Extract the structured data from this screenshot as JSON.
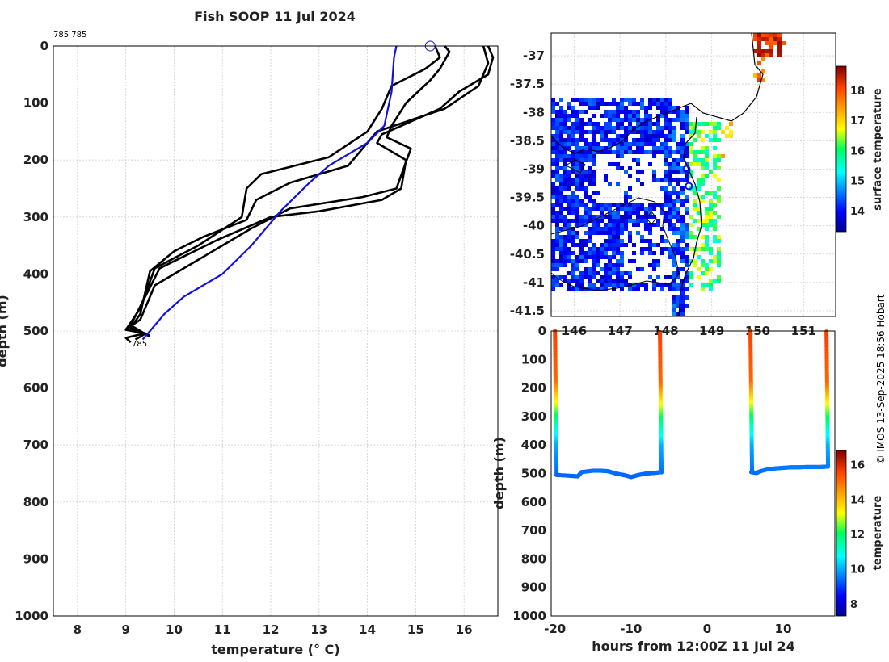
{
  "title": "Fish SOOP 11 Jul 2024",
  "copyright": "© IMOS 13-Sep-2025 18:56 Hobart",
  "colors": {
    "profile_line": "#000000",
    "climatology_line": "#1010e0",
    "coast": "#000000",
    "axis": "#000000"
  },
  "chart_data": [
    {
      "id": "profiles",
      "type": "line",
      "title": "Fish SOOP 11 Jul 2024",
      "xlabel": "temperature (° C)",
      "ylabel": "depth (m)",
      "xlim": [
        7.5,
        16.7
      ],
      "ylim": [
        1000,
        0
      ],
      "xticks": [
        "8",
        "9",
        "10",
        "11",
        "12",
        "13",
        "14",
        "15",
        "16"
      ],
      "yticks": [
        "0",
        "100",
        "200",
        "300",
        "400",
        "500",
        "600",
        "700",
        "800",
        "900",
        "1000"
      ],
      "grid": true,
      "top_label": "785 785",
      "bottom_label": "785",
      "series": [
        {
          "name": "profile-1",
          "color": "#000000",
          "points": [
            [
              15.6,
              0
            ],
            [
              15.7,
              10
            ],
            [
              15.5,
              40
            ],
            [
              15.3,
              60
            ],
            [
              14.8,
              100
            ],
            [
              14.5,
              140
            ],
            [
              14.4,
              160
            ],
            [
              14.9,
              180
            ],
            [
              14.6,
              250
            ],
            [
              13.9,
              265
            ],
            [
              12.4,
              285
            ],
            [
              11.6,
              320
            ],
            [
              10.4,
              380
            ],
            [
              9.6,
              420
            ],
            [
              9.3,
              480
            ],
            [
              9.0,
              497
            ],
            [
              9.4,
              505
            ],
            [
              9.2,
              515
            ]
          ]
        },
        {
          "name": "profile-2",
          "color": "#000000",
          "points": [
            [
              16.5,
              0
            ],
            [
              16.6,
              20
            ],
            [
              16.5,
              50
            ],
            [
              15.9,
              80
            ],
            [
              15.5,
              110
            ],
            [
              14.3,
              155
            ],
            [
              14.2,
              170
            ],
            [
              14.8,
              200
            ],
            [
              14.7,
              250
            ],
            [
              14.3,
              270
            ],
            [
              13.0,
              290
            ],
            [
              12.0,
              300
            ],
            [
              10.9,
              340
            ],
            [
              9.7,
              390
            ],
            [
              9.4,
              440
            ],
            [
              9.1,
              490
            ],
            [
              9.3,
              500
            ],
            [
              9.5,
              510
            ]
          ]
        },
        {
          "name": "profile-3",
          "color": "#000000",
          "points": [
            [
              16.4,
              0
            ],
            [
              16.5,
              30
            ],
            [
              16.3,
              70
            ],
            [
              15.6,
              110
            ],
            [
              14.2,
              150
            ],
            [
              13.6,
              210
            ],
            [
              12.4,
              240
            ],
            [
              11.7,
              270
            ],
            [
              11.5,
              305
            ],
            [
              10.6,
              335
            ],
            [
              10.0,
              360
            ],
            [
              9.5,
              395
            ],
            [
              9.3,
              470
            ],
            [
              9.1,
              495
            ],
            [
              9.5,
              508
            ]
          ]
        },
        {
          "name": "profile-4",
          "color": "#000000",
          "points": [
            [
              15.4,
              0
            ],
            [
              15.5,
              20
            ],
            [
              15.2,
              40
            ],
            [
              14.5,
              70
            ],
            [
              14.3,
              110
            ],
            [
              14.0,
              150
            ],
            [
              13.2,
              195
            ],
            [
              11.8,
              225
            ],
            [
              11.5,
              250
            ],
            [
              11.4,
              300
            ],
            [
              10.5,
              350
            ],
            [
              9.6,
              390
            ],
            [
              9.3,
              460
            ],
            [
              9.0,
              498
            ],
            [
              9.4,
              504
            ],
            [
              9.0,
              512
            ],
            [
              9.1,
              520
            ]
          ]
        },
        {
          "name": "climatology",
          "color": "#1010e0",
          "points": [
            [
              14.6,
              0
            ],
            [
              14.55,
              20
            ],
            [
              14.5,
              80
            ],
            [
              14.35,
              140
            ],
            [
              14.0,
              170
            ],
            [
              13.2,
              210
            ],
            [
              12.8,
              240
            ],
            [
              12.2,
              290
            ],
            [
              11.6,
              350
            ],
            [
              11.0,
              400
            ],
            [
              10.2,
              440
            ],
            [
              9.8,
              470
            ],
            [
              9.5,
              500
            ],
            [
              9.35,
              515
            ]
          ]
        }
      ],
      "marker": {
        "temperature": 15.3,
        "depth": 0
      }
    },
    {
      "id": "sst-map",
      "type": "heatmap",
      "xlabel": "",
      "ylabel": "",
      "xlim": [
        145.5,
        151.7
      ],
      "ylim": [
        -41.6,
        -36.6
      ],
      "xticks": [
        "146",
        "147",
        "148",
        "149",
        "150",
        "151"
      ],
      "yticks": [
        "-37",
        "-37.5",
        "-38",
        "-38.5",
        "-39",
        "-39.5",
        "-40",
        "-40.5",
        "-41",
        "-41.5"
      ],
      "colorbar_label": "surface temperature",
      "colorbar_ticks": [
        "14",
        "15",
        "16",
        "17",
        "18"
      ],
      "colorbar_range": [
        13.3,
        18.8
      ],
      "track": [
        [
          148.45,
          -39.0
        ],
        [
          148.5,
          -39.3
        ]
      ]
    },
    {
      "id": "section",
      "type": "scatter",
      "xlabel": "hours from 12:00Z 11 Jul 24",
      "ylabel": "depth (m)",
      "xlim": [
        -20.5,
        16.8
      ],
      "ylim": [
        1000,
        0
      ],
      "xticks": [
        "-20",
        "-10",
        "0",
        "10"
      ],
      "yticks": [
        "0",
        "100",
        "200",
        "300",
        "400",
        "500",
        "600",
        "700",
        "800",
        "900",
        "1000"
      ],
      "colorbar_label": "temperature",
      "colorbar_ticks": [
        "8",
        "10",
        "12",
        "14",
        "16"
      ],
      "colorbar_range": [
        7.3,
        16.8
      ],
      "casts": [
        {
          "hour_start": -20.0,
          "hour_end": -6.2,
          "bottom_depths": [
            [
              -19.8,
              505
            ],
            [
              -18,
              508
            ],
            [
              -17,
              510
            ],
            [
              -16.5,
              495
            ],
            [
              -15,
              490
            ],
            [
              -14,
              490
            ],
            [
              -13,
              492
            ],
            [
              -12,
              500
            ],
            [
              -11,
              505
            ],
            [
              -10,
              512
            ],
            [
              -9,
              505
            ],
            [
              -8,
              500
            ],
            [
              -7,
              498
            ],
            [
              -6.3,
              496
            ]
          ]
        },
        {
          "hour_start": 5.7,
          "hour_end": 15.7,
          "bottom_depths": [
            [
              5.8,
              495
            ],
            [
              6.5,
              498
            ],
            [
              7,
              492
            ],
            [
              8,
              485
            ],
            [
              9,
              482
            ],
            [
              10,
              480
            ],
            [
              11,
              478
            ],
            [
              12,
              478
            ],
            [
              13,
              477
            ],
            [
              14,
              477
            ],
            [
              15,
              477
            ],
            [
              15.6,
              476
            ]
          ]
        }
      ]
    }
  ]
}
